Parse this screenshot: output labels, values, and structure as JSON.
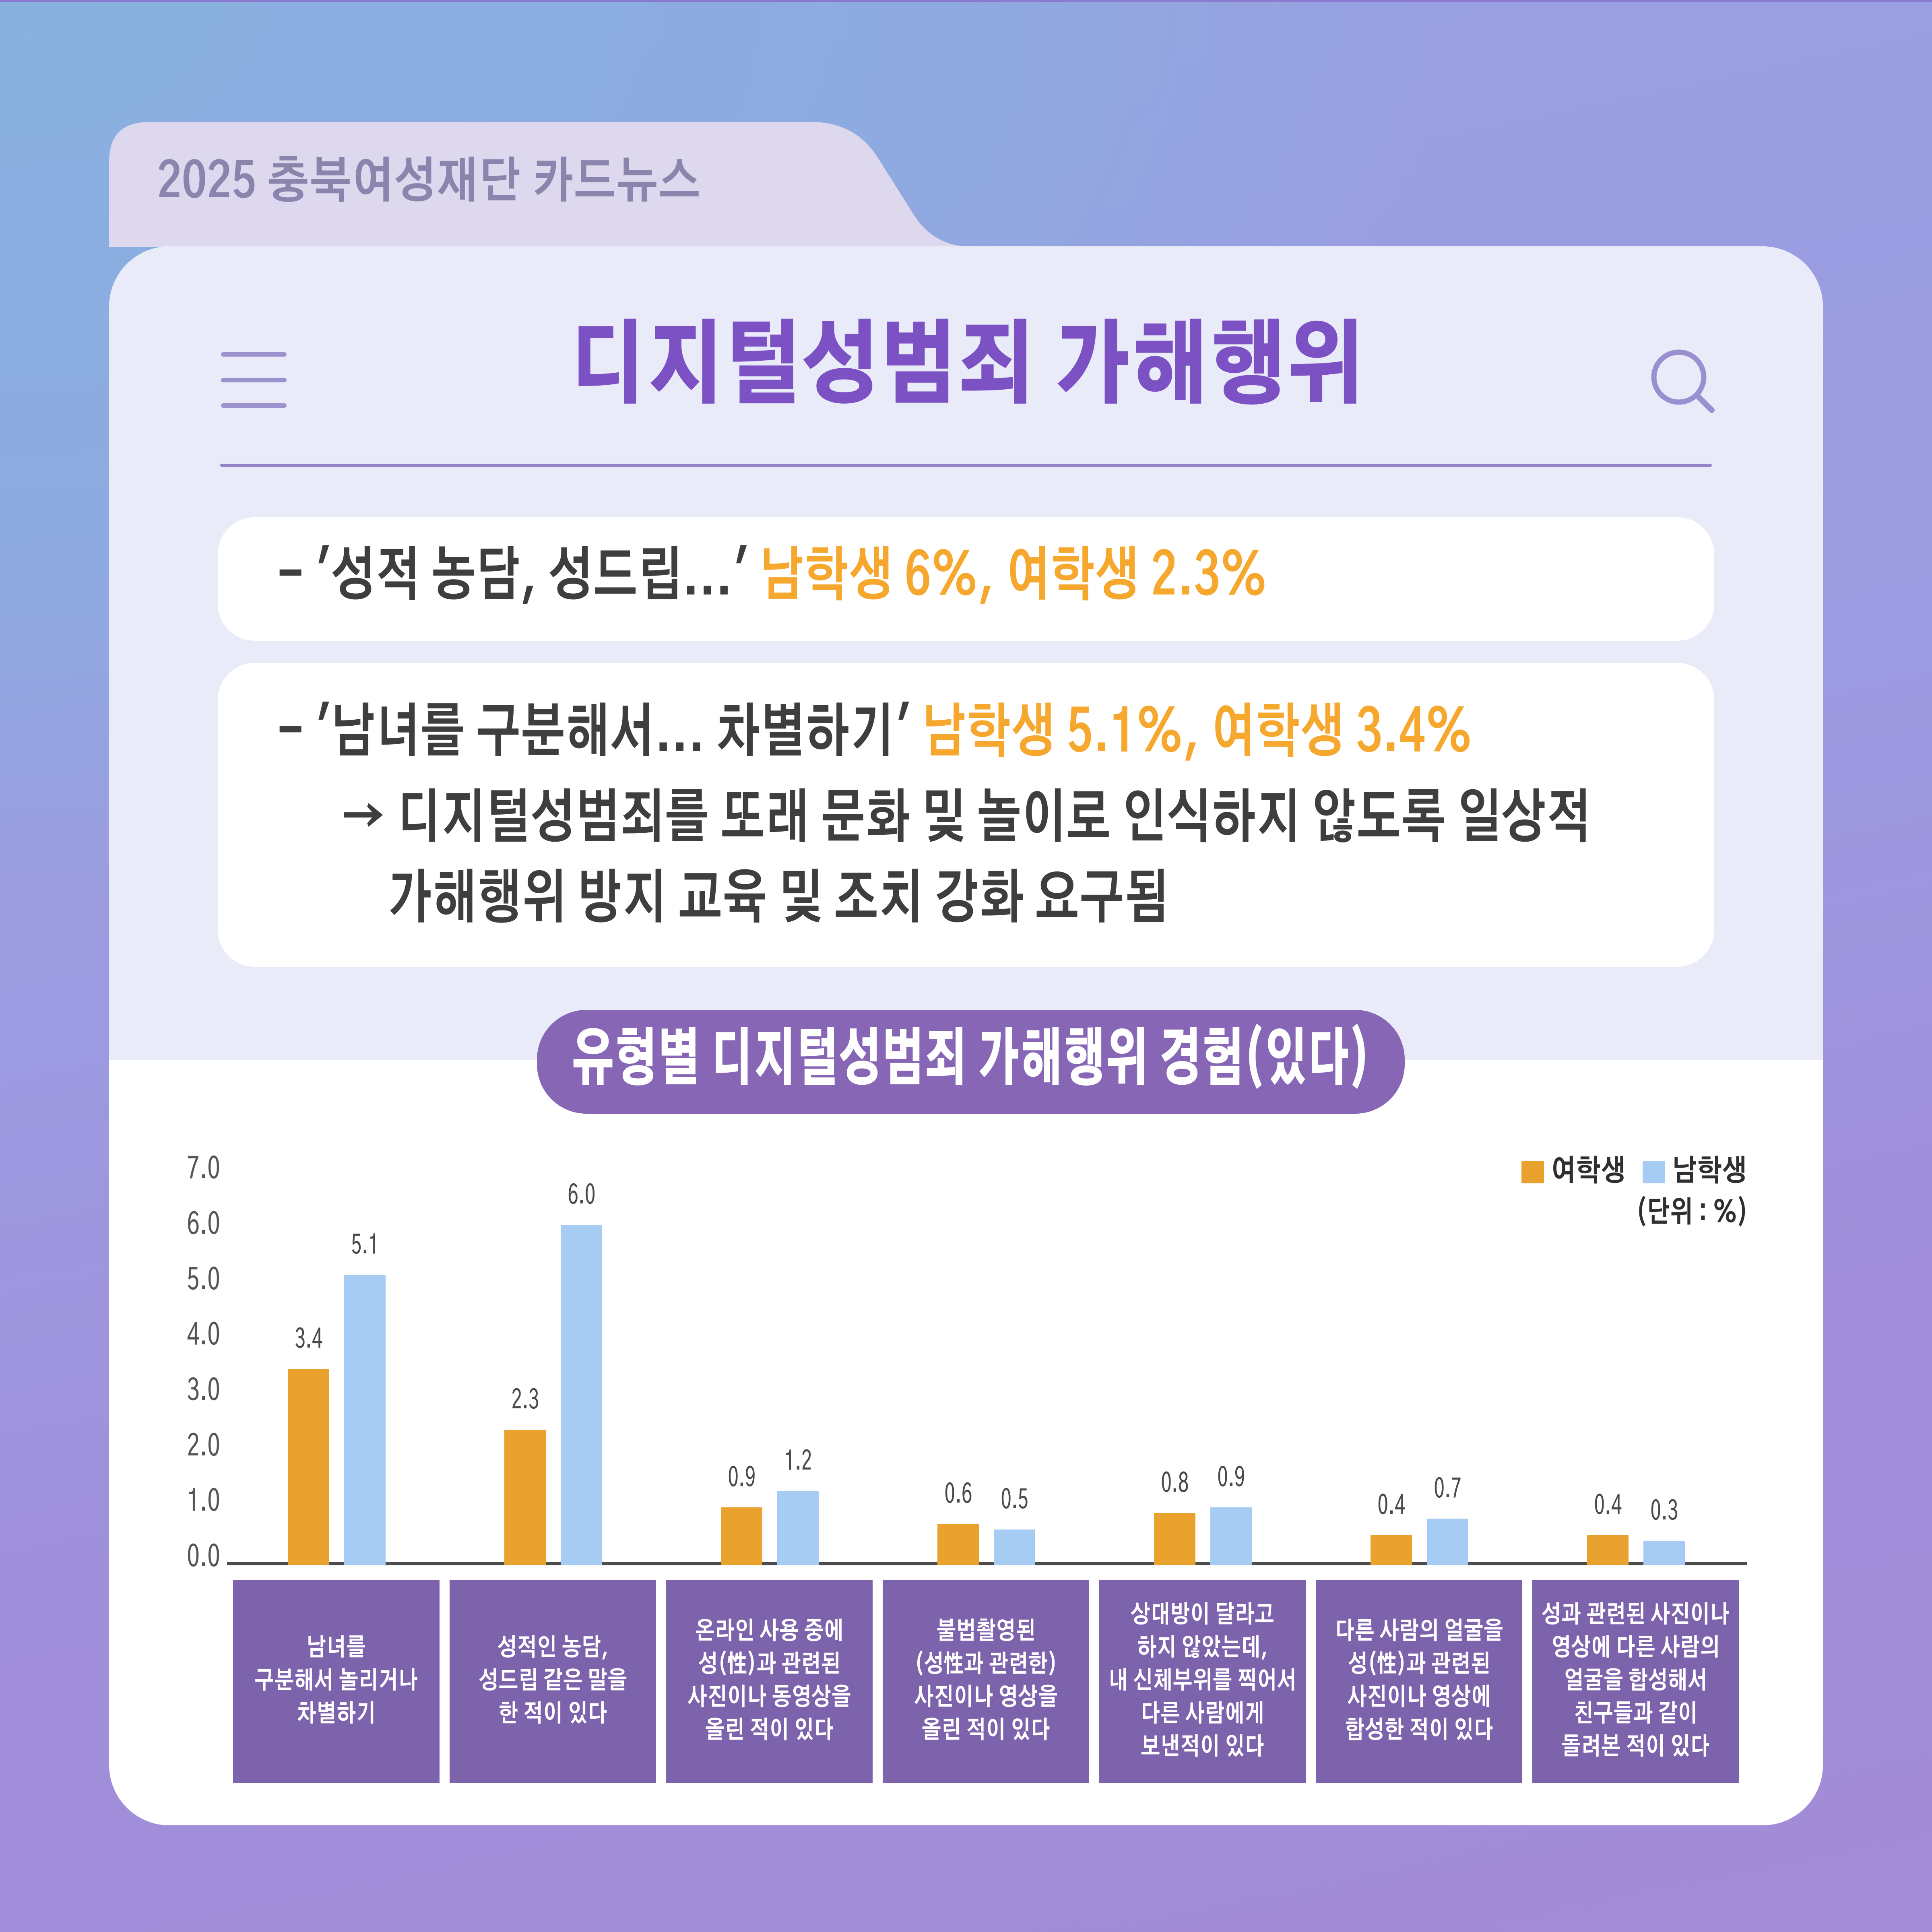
{
  "tab": {
    "label": "2025 충북여성재단 카드뉴스"
  },
  "header": {
    "title": "디지털성범죄 가해행위"
  },
  "summary": {
    "box1": {
      "prefix": "- '성적 농담, 성드립...' ",
      "highlight": "남학생 6%, 여학생 2.3%"
    },
    "box2": {
      "line1_prefix": "- '남녀를 구분해서... 차별하기' ",
      "line1_highlight": "남학생 5.1%, 여학생 3.4%",
      "line2": "→ 디지털성범죄를 또래 문화 및 놀이로 인식하지 않도록 일상적",
      "line3": "가해행위 방지 교육 및 조치 강화 요구됨"
    }
  },
  "section_badge": {
    "label": "유형별 디지털성범죄 가해행위 경험(있다)"
  },
  "chart_data": {
    "type": "bar",
    "title": "유형별 디지털성범죄 가해행위 경험(있다)",
    "unit_label": "(단위 : %)",
    "categories": [
      "남녀를\n구분해서 놀리거나\n차별하기",
      "성적인 농담,\n성드립 같은 말을\n한 적이 있다",
      "온라인 사용 중에\n성(性)과 관련된\n사진이나 동영상을\n올린 적이 있다",
      "불법촬영된\n(성性과 관련한)\n사진이나 영상을\n올린 적이 있다",
      "상대방이 달라고\n하지 않았는데,\n내 신체부위를 찍어서\n다른 사람에게\n보낸적이 있다",
      "다른 사람의 얼굴을\n성(性)과 관련된\n사진이나 영상에\n합성한 적이 있다",
      "성과 관련된 사진이나\n영상에 다른 사람의\n얼굴을 합성해서\n친구들과 같이\n돌려본 적이 있다"
    ],
    "series": [
      {
        "name": "여학생",
        "color": "#E9A22E",
        "values": [
          3.4,
          2.3,
          0.9,
          0.6,
          0.8,
          0.4,
          0.4
        ]
      },
      {
        "name": "남학생",
        "color": "#A6CCF4",
        "values": [
          5.1,
          6.0,
          1.2,
          0.5,
          0.9,
          0.7,
          0.3
        ]
      }
    ],
    "ylabel": "",
    "xlabel": "",
    "ylim": [
      0.0,
      7.0
    ],
    "yticks": [
      "7.0",
      "6.0",
      "5.0",
      "4.0",
      "3.0",
      "2.0",
      "1.0",
      "0.0"
    ],
    "grid": false,
    "legend_position": "top-right",
    "value_label_decimals": 1
  },
  "colors": {
    "accent_orange_text": "#F6A72E",
    "bar_orange": "#E9A22E",
    "bar_blue": "#A6CCF4",
    "title_purple": "#7B51C4",
    "badge_purple": "#8767B5",
    "category_box_purple": "#7D62AC",
    "icon_purple": "#9C92CF",
    "card_top": "#E9ECF8",
    "card_bottom": "#FFFFFF",
    "tab_lavender": "#DED8EE",
    "dark_text": "#3E3E3E"
  }
}
